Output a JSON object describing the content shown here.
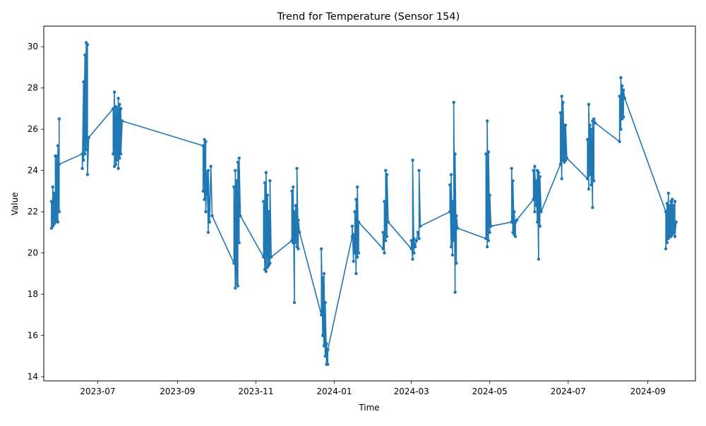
{
  "chart_data": {
    "type": "line",
    "title": "Trend for Temperature (Sensor 154)",
    "xlabel": "Time",
    "ylabel": "Value",
    "xlim": [
      "2023-05-20",
      "2024-10-08"
    ],
    "ylim": [
      13.8,
      31.0
    ],
    "grid": false,
    "legend": "none",
    "color": "#1f77b4",
    "x_ticks": [
      {
        "date": "2023-07-01",
        "label": "2023-07"
      },
      {
        "date": "2023-09-01",
        "label": "2023-09"
      },
      {
        "date": "2023-11-01",
        "label": "2023-11"
      },
      {
        "date": "2024-01-01",
        "label": "2024-01"
      },
      {
        "date": "2024-03-01",
        "label": "2024-03"
      },
      {
        "date": "2024-05-01",
        "label": "2024-05"
      },
      {
        "date": "2024-07-01",
        "label": "2024-07"
      },
      {
        "date": "2024-09-01",
        "label": "2024-09"
      }
    ],
    "y_ticks": [
      14,
      16,
      18,
      20,
      22,
      24,
      26,
      28,
      30
    ],
    "series": [
      {
        "points": [
          [
            "2023-05-26",
            21.2
          ],
          [
            "2023-05-26",
            22.5
          ],
          [
            "2023-05-27",
            21.3
          ],
          [
            "2023-05-27",
            23.2
          ],
          [
            "2023-05-28",
            21.4
          ],
          [
            "2023-05-28",
            22.9
          ],
          [
            "2023-05-29",
            21.5
          ],
          [
            "2023-05-29",
            24.7
          ],
          [
            "2023-05-30",
            21.6
          ],
          [
            "2023-05-30",
            24.7
          ],
          [
            "2023-05-31",
            21.5
          ],
          [
            "2023-05-31",
            25.2
          ],
          [
            "2023-06-01",
            22.0
          ],
          [
            "2023-06-01",
            26.5
          ],
          [
            "2023-06-01",
            24.3
          ],
          [
            "2023-06-19",
            24.8
          ],
          [
            "2023-06-19",
            24.1
          ],
          [
            "2023-06-20",
            28.3
          ],
          [
            "2023-06-20",
            24.5
          ],
          [
            "2023-06-21",
            29.6
          ],
          [
            "2023-06-21",
            24.8
          ],
          [
            "2023-06-22",
            30.2
          ],
          [
            "2023-06-22",
            25.0
          ],
          [
            "2023-06-23",
            30.1
          ],
          [
            "2023-06-23",
            23.8
          ],
          [
            "2023-06-24",
            25.6
          ],
          [
            "2023-07-13",
            27.0
          ],
          [
            "2023-07-13",
            24.8
          ],
          [
            "2023-07-14",
            27.8
          ],
          [
            "2023-07-14",
            24.2
          ],
          [
            "2023-07-15",
            27.1
          ],
          [
            "2023-07-15",
            24.3
          ],
          [
            "2023-07-16",
            27.0
          ],
          [
            "2023-07-16",
            24.5
          ],
          [
            "2023-07-17",
            27.5
          ],
          [
            "2023-07-17",
            24.1
          ],
          [
            "2023-07-18",
            27.2
          ],
          [
            "2023-07-18",
            24.6
          ],
          [
            "2023-07-19",
            27.0
          ],
          [
            "2023-07-19",
            24.8
          ],
          [
            "2023-07-20",
            26.4
          ],
          [
            "2023-09-21",
            25.2
          ],
          [
            "2023-09-21",
            23.0
          ],
          [
            "2023-09-22",
            25.5
          ],
          [
            "2023-09-22",
            22.6
          ],
          [
            "2023-09-23",
            25.4
          ],
          [
            "2023-09-23",
            22.0
          ],
          [
            "2023-09-24",
            23.9
          ],
          [
            "2023-09-25",
            21.0
          ],
          [
            "2023-09-25",
            24.0
          ],
          [
            "2023-09-26",
            21.5
          ],
          [
            "2023-09-27",
            24.2
          ],
          [
            "2023-09-28",
            21.8
          ],
          [
            "2023-10-15",
            19.5
          ],
          [
            "2023-10-15",
            23.2
          ],
          [
            "2023-10-16",
            18.3
          ],
          [
            "2023-10-16",
            24.0
          ],
          [
            "2023-10-17",
            18.5
          ],
          [
            "2023-10-17",
            23.5
          ],
          [
            "2023-10-18",
            18.4
          ],
          [
            "2023-10-18",
            24.4
          ],
          [
            "2023-10-19",
            20.5
          ],
          [
            "2023-10-19",
            24.6
          ],
          [
            "2023-10-20",
            21.8
          ],
          [
            "2023-11-07",
            19.8
          ],
          [
            "2023-11-07",
            22.5
          ],
          [
            "2023-11-08",
            19.2
          ],
          [
            "2023-11-08",
            23.4
          ],
          [
            "2023-11-09",
            19.1
          ],
          [
            "2023-11-09",
            23.9
          ],
          [
            "2023-11-10",
            19.3
          ],
          [
            "2023-11-10",
            22.8
          ],
          [
            "2023-11-11",
            19.4
          ],
          [
            "2023-11-11",
            22.0
          ],
          [
            "2023-11-12",
            19.5
          ],
          [
            "2023-11-12",
            23.5
          ],
          [
            "2023-11-13",
            19.8
          ],
          [
            "2023-11-29",
            20.6
          ],
          [
            "2023-11-29",
            23.0
          ],
          [
            "2023-11-30",
            20.5
          ],
          [
            "2023-11-30",
            23.2
          ],
          [
            "2023-12-01",
            17.6
          ],
          [
            "2023-12-01",
            22.0
          ],
          [
            "2023-12-02",
            20.5
          ],
          [
            "2023-12-02",
            22.3
          ],
          [
            "2023-12-03",
            20.3
          ],
          [
            "2023-12-03",
            24.1
          ],
          [
            "2023-12-04",
            20.2
          ],
          [
            "2023-12-04",
            21.6
          ],
          [
            "2023-12-05",
            21.0
          ],
          [
            "2023-12-22",
            17.0
          ],
          [
            "2023-12-22",
            20.2
          ],
          [
            "2023-12-23",
            16.0
          ],
          [
            "2023-12-23",
            18.8
          ],
          [
            "2023-12-24",
            15.5
          ],
          [
            "2023-12-24",
            19.0
          ],
          [
            "2023-12-25",
            15.0
          ],
          [
            "2023-12-25",
            17.6
          ],
          [
            "2023-12-26",
            14.6
          ],
          [
            "2023-12-26",
            15.6
          ],
          [
            "2023-12-27",
            14.6
          ],
          [
            "2023-12-27",
            15.3
          ],
          [
            "2024-01-15",
            20.8
          ],
          [
            "2024-01-15",
            21.3
          ],
          [
            "2024-01-16",
            19.6
          ],
          [
            "2024-01-16",
            20.9
          ],
          [
            "2024-01-17",
            20.0
          ],
          [
            "2024-01-17",
            22.0
          ],
          [
            "2024-01-18",
            19.0
          ],
          [
            "2024-01-18",
            22.6
          ],
          [
            "2024-01-19",
            19.8
          ],
          [
            "2024-01-19",
            23.2
          ],
          [
            "2024-01-20",
            20.0
          ],
          [
            "2024-01-20",
            21.5
          ],
          [
            "2024-02-08",
            20.2
          ],
          [
            "2024-02-08",
            21.0
          ],
          [
            "2024-02-09",
            20.0
          ],
          [
            "2024-02-09",
            22.5
          ],
          [
            "2024-02-10",
            20.6
          ],
          [
            "2024-02-10",
            24.0
          ],
          [
            "2024-02-11",
            20.8
          ],
          [
            "2024-02-11",
            23.8
          ],
          [
            "2024-02-12",
            21.5
          ],
          [
            "2024-03-01",
            20.2
          ],
          [
            "2024-03-01",
            20.6
          ],
          [
            "2024-03-02",
            19.7
          ],
          [
            "2024-03-02",
            24.5
          ],
          [
            "2024-03-03",
            20.0
          ],
          [
            "2024-03-03",
            20.7
          ],
          [
            "2024-03-04",
            20.3
          ],
          [
            "2024-03-05",
            20.6
          ],
          [
            "2024-03-06",
            21.0
          ],
          [
            "2024-03-07",
            20.7
          ],
          [
            "2024-03-07",
            24.0
          ],
          [
            "2024-03-08",
            21.3
          ],
          [
            "2024-03-31",
            22.0
          ],
          [
            "2024-03-31",
            23.3
          ],
          [
            "2024-04-01",
            20.3
          ],
          [
            "2024-04-01",
            23.8
          ],
          [
            "2024-04-02",
            19.9
          ],
          [
            "2024-04-02",
            22.5
          ],
          [
            "2024-04-03",
            20.6
          ],
          [
            "2024-04-03",
            27.3
          ],
          [
            "2024-04-04",
            18.1
          ],
          [
            "2024-04-04",
            24.8
          ],
          [
            "2024-04-05",
            19.5
          ],
          [
            "2024-04-05",
            21.8
          ],
          [
            "2024-04-06",
            21.2
          ],
          [
            "2024-04-28",
            20.7
          ],
          [
            "2024-04-28",
            24.8
          ],
          [
            "2024-04-29",
            20.3
          ],
          [
            "2024-04-29",
            26.4
          ],
          [
            "2024-04-30",
            20.6
          ],
          [
            "2024-04-30",
            24.9
          ],
          [
            "2024-05-01",
            21.0
          ],
          [
            "2024-05-01",
            22.8
          ],
          [
            "2024-05-02",
            21.3
          ],
          [
            "2024-05-18",
            21.5
          ],
          [
            "2024-05-18",
            24.1
          ],
          [
            "2024-05-19",
            21.0
          ],
          [
            "2024-05-19",
            23.5
          ],
          [
            "2024-05-20",
            20.9
          ],
          [
            "2024-05-20",
            22.0
          ],
          [
            "2024-05-21",
            20.8
          ],
          [
            "2024-05-21",
            21.5
          ],
          [
            "2024-05-22",
            21.6
          ],
          [
            "2024-06-04",
            22.6
          ],
          [
            "2024-06-04",
            24.0
          ],
          [
            "2024-06-05",
            22.0
          ],
          [
            "2024-06-05",
            24.2
          ],
          [
            "2024-06-06",
            22.3
          ],
          [
            "2024-06-06",
            23.5
          ],
          [
            "2024-06-07",
            21.5
          ],
          [
            "2024-06-07",
            24.0
          ],
          [
            "2024-06-08",
            19.7
          ],
          [
            "2024-06-08",
            23.9
          ],
          [
            "2024-06-09",
            21.3
          ],
          [
            "2024-06-09",
            23.7
          ],
          [
            "2024-06-10",
            22.0
          ],
          [
            "2024-06-25",
            24.3
          ],
          [
            "2024-06-25",
            26.8
          ],
          [
            "2024-06-26",
            23.6
          ],
          [
            "2024-06-26",
            27.6
          ],
          [
            "2024-06-27",
            24.5
          ],
          [
            "2024-06-27",
            27.3
          ],
          [
            "2024-06-28",
            24.4
          ],
          [
            "2024-06-28",
            26.2
          ],
          [
            "2024-06-29",
            24.5
          ],
          [
            "2024-06-29",
            26.2
          ],
          [
            "2024-06-30",
            24.6
          ],
          [
            "2024-07-16",
            23.6
          ],
          [
            "2024-07-16",
            25.5
          ],
          [
            "2024-07-17",
            23.1
          ],
          [
            "2024-07-17",
            27.2
          ],
          [
            "2024-07-18",
            23.8
          ],
          [
            "2024-07-18",
            26.2
          ],
          [
            "2024-07-19",
            23.3
          ],
          [
            "2024-07-19",
            26.0
          ],
          [
            "2024-07-20",
            22.2
          ],
          [
            "2024-07-20",
            26.4
          ],
          [
            "2024-07-21",
            23.5
          ],
          [
            "2024-07-21",
            26.5
          ],
          [
            "2024-07-22",
            26.3
          ],
          [
            "2024-08-10",
            25.4
          ],
          [
            "2024-08-10",
            27.6
          ],
          [
            "2024-08-11",
            26.0
          ],
          [
            "2024-08-11",
            28.5
          ],
          [
            "2024-08-12",
            26.5
          ],
          [
            "2024-08-12",
            28.1
          ],
          [
            "2024-08-13",
            26.6
          ],
          [
            "2024-08-13",
            27.9
          ],
          [
            "2024-08-14",
            27.5
          ],
          [
            "2024-09-15",
            22.0
          ],
          [
            "2024-09-15",
            20.2
          ],
          [
            "2024-09-16",
            22.4
          ],
          [
            "2024-09-16",
            20.5
          ],
          [
            "2024-09-17",
            22.9
          ],
          [
            "2024-09-17",
            20.7
          ],
          [
            "2024-09-18",
            22.3
          ],
          [
            "2024-09-18",
            20.8
          ],
          [
            "2024-09-19",
            22.5
          ],
          [
            "2024-09-19",
            20.8
          ],
          [
            "2024-09-20",
            22.6
          ],
          [
            "2024-09-20",
            20.9
          ],
          [
            "2024-09-21",
            22.3
          ],
          [
            "2024-09-21",
            21.0
          ],
          [
            "2024-09-22",
            22.5
          ],
          [
            "2024-09-22",
            20.8
          ],
          [
            "2024-09-23",
            21.5
          ]
        ]
      }
    ]
  }
}
